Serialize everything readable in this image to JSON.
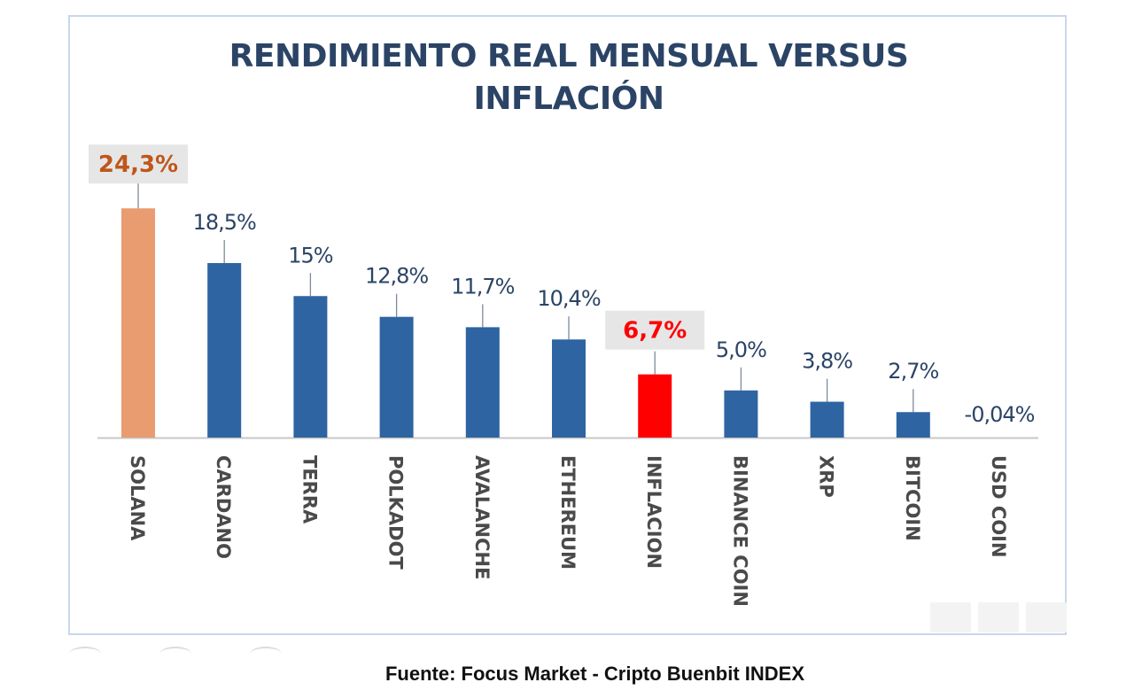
{
  "chart_data": {
    "type": "bar",
    "title": "RENDIMIENTO REAL MENSUAL VERSUS INFLACIÓN",
    "title_lines": [
      "RENDIMIENTO REAL MENSUAL VERSUS",
      "INFLACIÓN"
    ],
    "categories": [
      "SOLANA",
      "CARDANO",
      "TERRA",
      "POLKADOT",
      "AVALANCHE",
      "ETHEREUM",
      "INFLACION",
      "BINANCE COIN",
      "XRP",
      "BITCOIN",
      "USD COIN"
    ],
    "values": [
      24.3,
      18.5,
      15,
      12.8,
      11.7,
      10.4,
      6.7,
      5.0,
      3.8,
      2.7,
      -0.04
    ],
    "data_labels": [
      "24,3%",
      "18,5%",
      "15%",
      "12,8%",
      "11,7%",
      "10,4%",
      "6,7%",
      "5,0%",
      "3,8%",
      "2,7%",
      "-0,04%"
    ],
    "bar_colors": [
      "#e89c70",
      "#2e64a2",
      "#2e64a2",
      "#2e64a2",
      "#2e64a2",
      "#2e64a2",
      "#ff0000",
      "#2e64a2",
      "#2e64a2",
      "#2e64a2",
      "#2e64a2"
    ],
    "highlighted": [
      "SOLANA",
      "INFLACION"
    ],
    "xlabel": "",
    "ylabel": "",
    "ylim": [
      0,
      25
    ],
    "grid": false,
    "legend": "none"
  },
  "colors": {
    "title": "#2b4466",
    "label_default": "#2b4466",
    "label_solana": "#c0561a",
    "label_inflacion": "#ff0000",
    "highlight_box": "#e6e6e6",
    "axis": "#c7c7c7",
    "category_text": "#4a4a4a"
  },
  "source": "Fuente: Focus Market - Cripto Buenbit INDEX"
}
